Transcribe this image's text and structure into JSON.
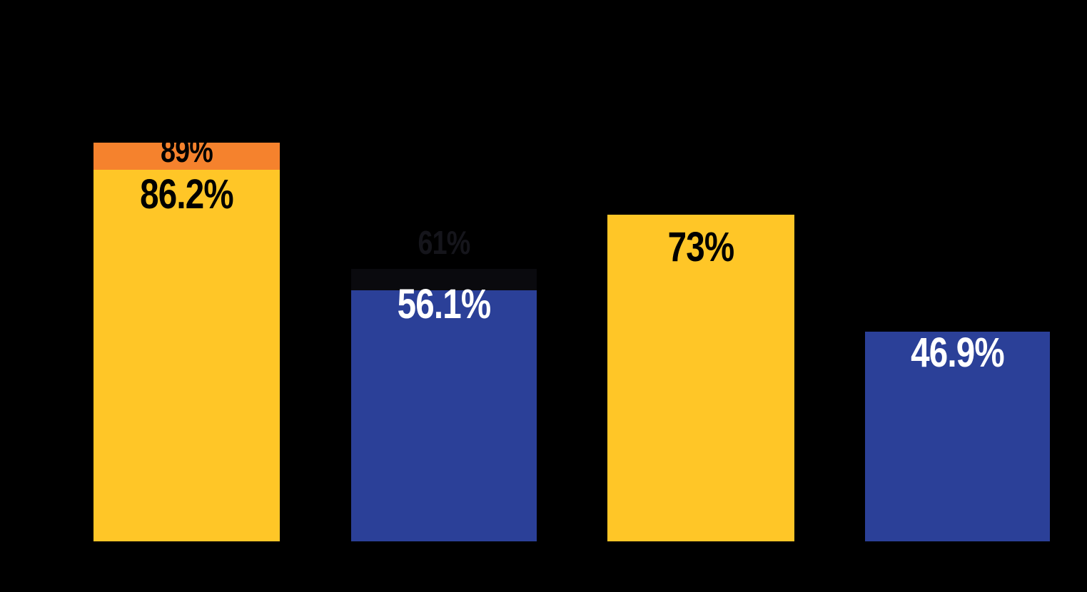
{
  "colors": {
    "background": "#000000",
    "bar_yellow": "#FFC627",
    "bar_blue": "#2B4098",
    "cap_orange": "#F5822D",
    "cap_dark": "#0A0A0E",
    "label_dark": "#000000",
    "label_light": "#FFFFFF",
    "label_faint": "#15151B"
  },
  "chart_data": {
    "type": "bar",
    "unit": "percent",
    "title": "",
    "xlabel": "",
    "ylabel": "",
    "ylim": [
      0,
      100
    ],
    "grid": false,
    "legend": false,
    "background": "#000000",
    "bars": [
      {
        "value": 86.2,
        "label": "86.2%",
        "color": "#FFC627",
        "label_color": "#000000",
        "cap": {
          "value": 89,
          "label": "89%",
          "color": "#F5822D",
          "label_color": "#000000"
        }
      },
      {
        "value": 56.1,
        "label": "56.1%",
        "color": "#2B4098",
        "label_color": "#FFFFFF",
        "cap": {
          "value": 61,
          "label": "61%",
          "color": "#0A0A0E",
          "label_color": "#15151B"
        }
      },
      {
        "value": 73,
        "label": "73%",
        "color": "#FFC627",
        "label_color": "#000000",
        "cap": null
      },
      {
        "value": 46.9,
        "label": "46.9%",
        "color": "#2B4098",
        "label_color": "#FFFFFF",
        "cap": null
      }
    ]
  }
}
